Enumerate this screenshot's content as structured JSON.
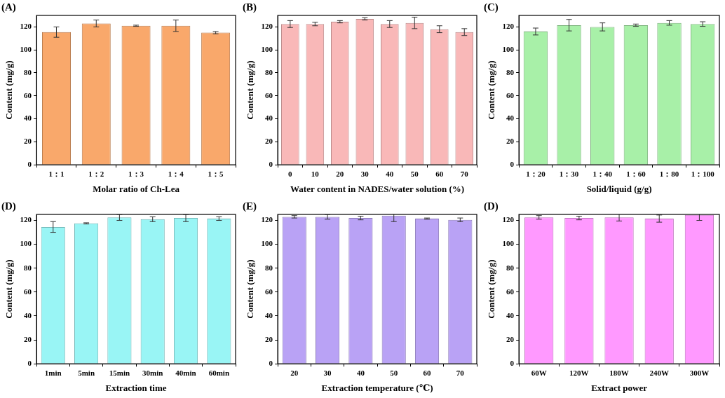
{
  "chart_data": [
    {
      "type": "bar",
      "title": "(A)",
      "x_label": "Molar ratio of Ch-Lea",
      "y_label": "Content (mg/g)",
      "categories": [
        "1：1",
        "1：2",
        "1：3",
        "1：4",
        "1：5"
      ],
      "values": [
        115.5,
        123,
        121,
        121,
        115
      ],
      "errors": [
        4.5,
        3,
        0.5,
        5,
        1
      ],
      "color": "#f9a86b",
      "ylim": [
        0,
        130
      ],
      "yticks": [
        0,
        20,
        40,
        60,
        80,
        100,
        120
      ],
      "grid": false
    },
    {
      "type": "bar",
      "title": "(B)",
      "x_label": "Water content in NADES/water solution (%)",
      "y_label": "Content (mg/g)",
      "categories": [
        "0",
        "10",
        "20",
        "30",
        "40",
        "50",
        "60",
        "70"
      ],
      "values": [
        122.5,
        122.5,
        124.5,
        127,
        122.5,
        123.5,
        118,
        115.5
      ],
      "errors": [
        3,
        1.5,
        1,
        1,
        3,
        5,
        3,
        3
      ],
      "color": "#f9b8b8",
      "ylim": [
        0,
        130
      ],
      "yticks": [
        0,
        20,
        40,
        60,
        80,
        100,
        120
      ],
      "grid": false
    },
    {
      "type": "bar",
      "title": "(C)",
      "x_label": "Solid/liquid (g/g)",
      "y_label": "Content (mg/g)",
      "categories": [
        "1：20",
        "1：30",
        "1：40",
        "1：60",
        "1：80",
        "1：100"
      ],
      "values": [
        116,
        121.5,
        120,
        121.5,
        123.5,
        122.5
      ],
      "errors": [
        3,
        5,
        3.5,
        1,
        2,
        2
      ],
      "color": "#a8f0a8",
      "ylim": [
        0,
        130
      ],
      "yticks": [
        0,
        20,
        40,
        60,
        80,
        100,
        120
      ],
      "grid": false
    },
    {
      "type": "bar",
      "title": "(D)",
      "x_label": "Extraction time",
      "y_label": "Content (mg/g)",
      "categories": [
        "1min",
        "5min",
        "15min",
        "30min",
        "40min",
        "60min"
      ],
      "values": [
        114.5,
        117.5,
        122.5,
        121,
        122,
        121.5
      ],
      "errors": [
        4.5,
        0.5,
        2.5,
        2,
        3,
        1.5
      ],
      "color": "#99f5f5",
      "ylim": [
        0,
        125
      ],
      "yticks": [
        0,
        20,
        40,
        60,
        80,
        100,
        120
      ],
      "grid": false
    },
    {
      "type": "bar",
      "title": "(E)",
      "x_label": "Extraction temperature (℃)",
      "y_label": "Content (mg/g)",
      "categories": [
        "20",
        "30",
        "40",
        "50",
        "60",
        "70"
      ],
      "values": [
        123,
        123,
        122,
        124,
        121.5,
        120.5
      ],
      "errors": [
        1,
        2,
        1.5,
        5,
        0.5,
        1.5
      ],
      "color": "#b9a2f5",
      "ylim": [
        0,
        125
      ],
      "yticks": [
        0,
        20,
        40,
        60,
        80,
        100,
        120
      ],
      "grid": false
    },
    {
      "type": "bar",
      "title": "(D)",
      "x_label": "Extract power",
      "y_label": "Content (mg/g)",
      "categories": [
        "60W",
        "120W",
        "180W",
        "240W",
        "300W"
      ],
      "values": [
        122.5,
        122,
        122.5,
        121.5,
        124.5
      ],
      "errors": [
        1.5,
        1.5,
        3,
        3,
        4.5
      ],
      "color": "#ff99ff",
      "ylim": [
        0,
        125
      ],
      "yticks": [
        0,
        20,
        40,
        60,
        80,
        100,
        120
      ],
      "grid": false
    }
  ]
}
